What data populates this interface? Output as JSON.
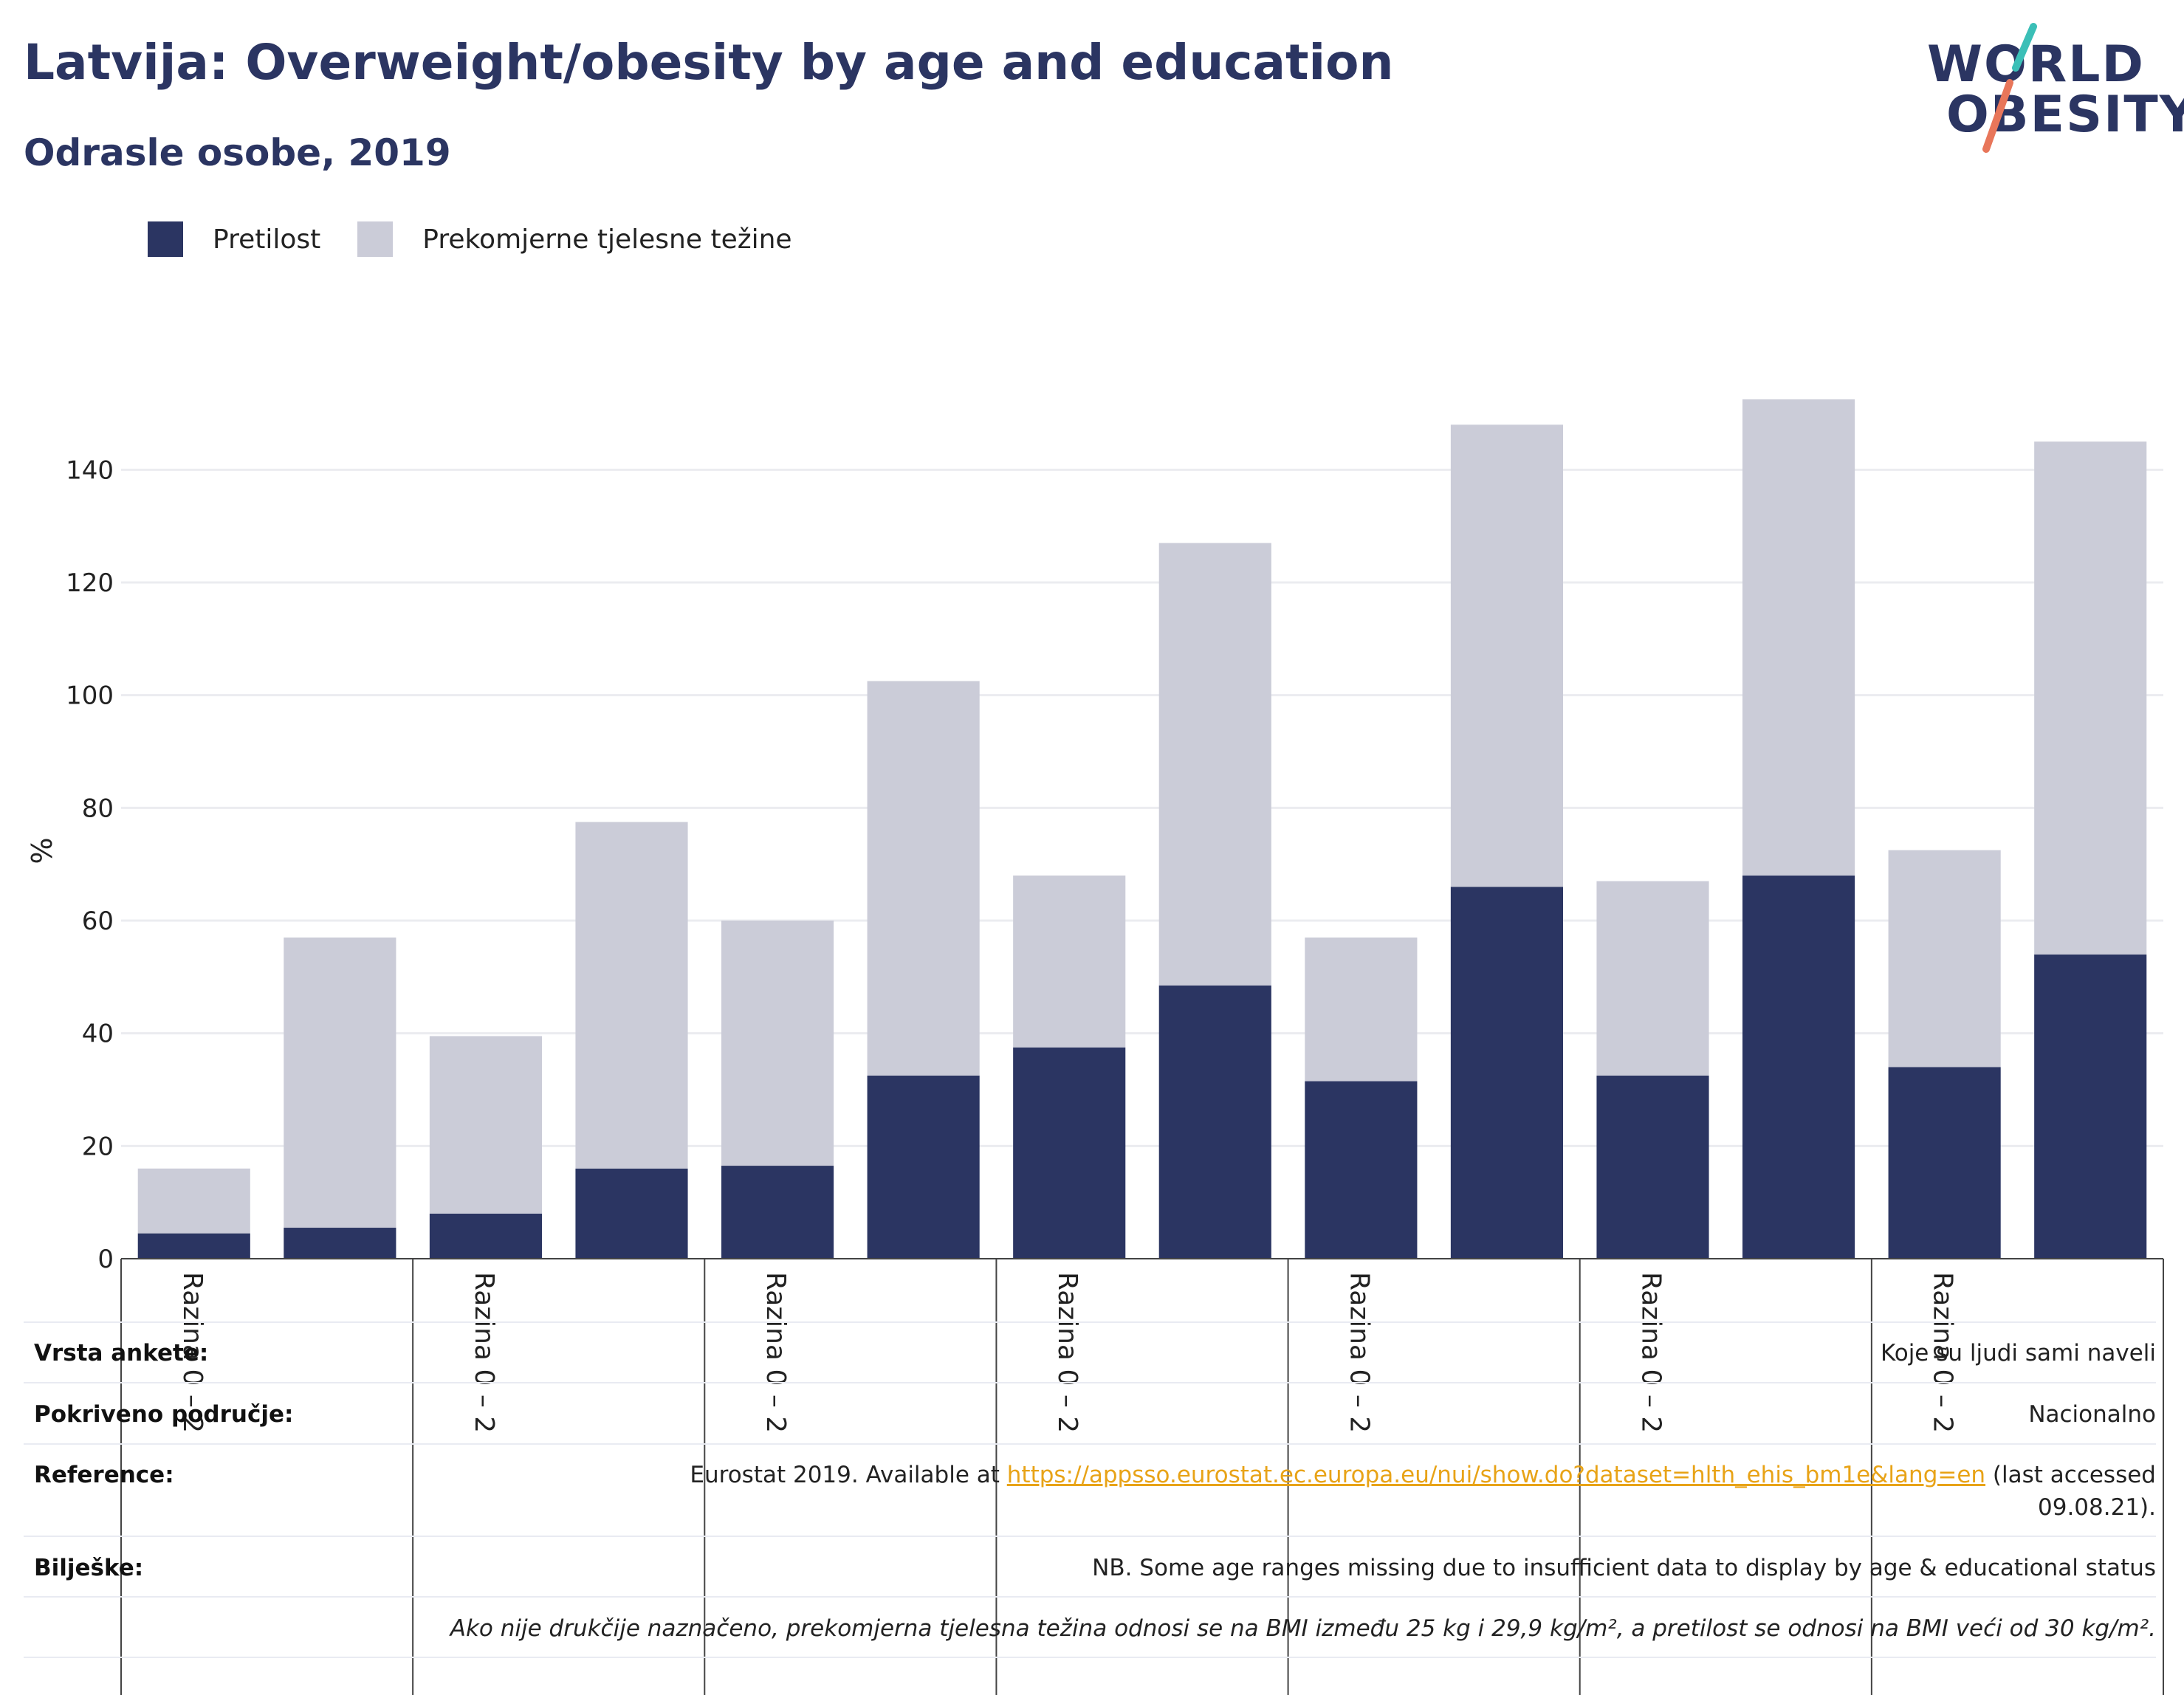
{
  "title": "Latvija: Overweight/obesity by age and education",
  "subtitle": "Odrasle osobe, 2019",
  "logo": {
    "line1": "WORLD",
    "line2": "OBESITY",
    "colors": {
      "text": "#2b3562",
      "slash_top": "#3bbfb7",
      "slash_bottom": "#e8765a"
    }
  },
  "legend": [
    {
      "label": "Pretilost",
      "color": "#2b3562"
    },
    {
      "label": "Prekomjerne tjelesne težine",
      "color": "#cbccd8"
    }
  ],
  "chart_data": {
    "type": "bar",
    "stacked": true,
    "ylabel": "%",
    "xlabel": "",
    "ylim": [
      0,
      150
    ],
    "yticks": [
      0,
      20,
      40,
      60,
      80,
      100,
      120,
      140
    ],
    "grid": true,
    "legend_position": "top-left",
    "group_labels": [
      "Razina 0 – 2",
      "Razina 0 – 2",
      "Razina 0 – 2",
      "Razina 0 – 2",
      "Razina 0 – 2",
      "Razina 0 – 2",
      "Razina 0 – 2"
    ],
    "series": [
      {
        "name": "Pretilost",
        "color": "#2b3562",
        "values": [
          4.5,
          5.5,
          8,
          16,
          16.5,
          32.5,
          37.5,
          48.5,
          31.5,
          66,
          32.5,
          68,
          34,
          54
        ]
      },
      {
        "name": "Prekomjerne tjelesne težine",
        "color": "#cbccd8",
        "values": [
          11.5,
          51.5,
          31.5,
          61.5,
          43.5,
          70,
          30.5,
          78.5,
          25.5,
          82,
          34.5,
          84.5,
          38.5,
          91
        ]
      }
    ]
  },
  "meta": {
    "survey_type": {
      "label": "Vrsta ankete:",
      "value": "Koje su ljudi sami naveli"
    },
    "coverage": {
      "label": "Pokriveno područje:",
      "value": "Nacionalno"
    },
    "reference": {
      "label": "Reference:",
      "prefix": "Eurostat 2019. Available at ",
      "link": "https://appsso.eurostat.ec.europa.eu/nui/show.do?dataset=hlth_ehis_bm1e&lang=en",
      "suffix": " (last accessed",
      "line2": "09.08.21)."
    },
    "notes": {
      "label": "Bilješke:",
      "value": "NB. Some age ranges missing due to insufficient data to display by age & educational status",
      "definition": "Ako nije drukčije naznačeno, prekomjerna tjelesna težina odnosi se na BMI između 25 kg i 29,9 kg/m², a pretilost se odnosi na BMI veći od 30 kg/m²."
    }
  }
}
